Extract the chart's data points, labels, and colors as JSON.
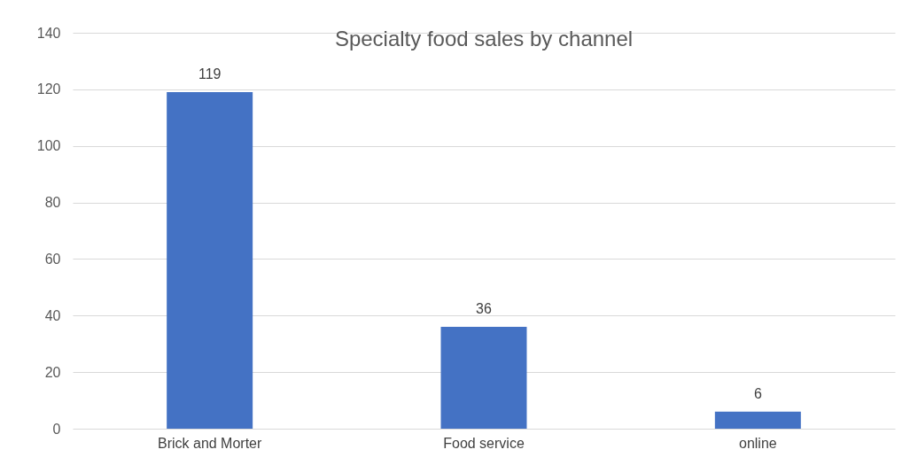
{
  "chart_data": {
    "type": "bar",
    "title": "Specialty food sales by channel",
    "categories": [
      "Brick and Morter",
      "Food service",
      "online"
    ],
    "values": [
      119,
      36,
      6
    ],
    "color": "#4472c4",
    "ylim": [
      0,
      140
    ],
    "yticks": [
      0,
      20,
      40,
      60,
      80,
      100,
      120,
      140
    ],
    "grid": "y",
    "data_labels": true
  }
}
